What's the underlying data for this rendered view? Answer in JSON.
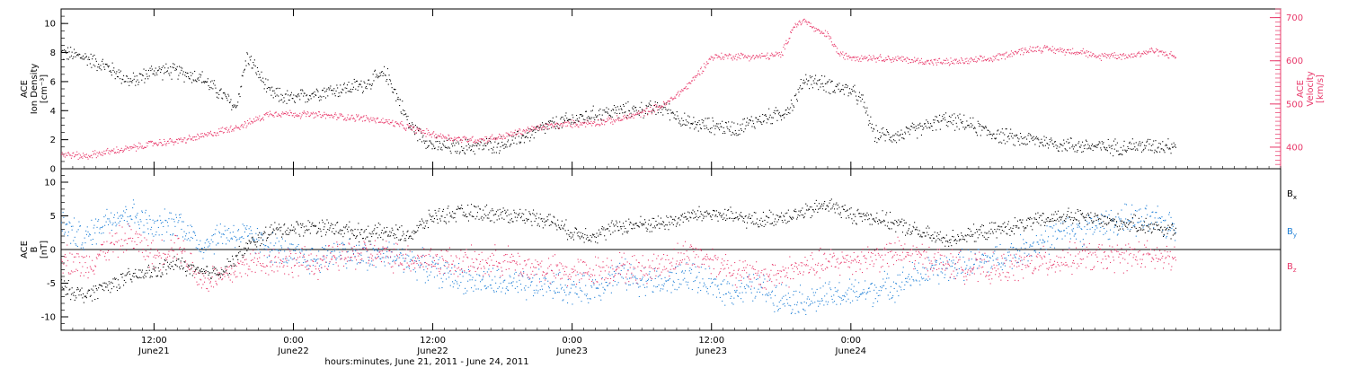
{
  "chart_data": [
    {
      "type": "scatter",
      "panel": "top",
      "left_axis": {
        "label_lines": [
          "ACE",
          "Ion Density",
          "[cm⁻³]"
        ],
        "ylim": [
          0,
          11
        ],
        "ticks": [
          0,
          2,
          4,
          6,
          8,
          10
        ],
        "color": "#000000"
      },
      "right_axis": {
        "label_lines": [
          "ACE",
          "Velocity",
          "[km/s]"
        ],
        "ylim": [
          350,
          720
        ],
        "ticks": [
          400,
          500,
          600,
          700
        ],
        "color": "#e8386a"
      },
      "series": [
        {
          "axis": "left",
          "color": "#000000",
          "points": [
            [
              0,
              8.0
            ],
            [
              2,
              7.7
            ],
            [
              4,
              7.0
            ],
            [
              6,
              6.0
            ],
            [
              8,
              6.8
            ],
            [
              10,
              6.7
            ],
            [
              12,
              6.3
            ],
            [
              14,
              5.0
            ],
            [
              15,
              4.2
            ],
            [
              16,
              7.8
            ],
            [
              17,
              6.5
            ],
            [
              18,
              5.2
            ],
            [
              20,
              4.8
            ],
            [
              22,
              5.3
            ],
            [
              24,
              5.5
            ],
            [
              26,
              5.8
            ],
            [
              28,
              6.6
            ],
            [
              30,
              3.0
            ],
            [
              32,
              1.6
            ],
            [
              34,
              1.5
            ],
            [
              36,
              1.6
            ],
            [
              38,
              1.7
            ],
            [
              40,
              2.3
            ],
            [
              42,
              3.0
            ],
            [
              44,
              3.4
            ],
            [
              46,
              3.8
            ],
            [
              48,
              4.0
            ],
            [
              50,
              4.1
            ],
            [
              52,
              4.2
            ],
            [
              54,
              3.1
            ],
            [
              56,
              3.0
            ],
            [
              58,
              2.8
            ],
            [
              60,
              3.4
            ],
            [
              62,
              3.8
            ],
            [
              63,
              4.5
            ],
            [
              64,
              6.2
            ],
            [
              66,
              5.8
            ],
            [
              68,
              5.4
            ],
            [
              69,
              4.6
            ],
            [
              70,
              2.4
            ],
            [
              72,
              2.3
            ],
            [
              74,
              2.8
            ],
            [
              76,
              3.4
            ],
            [
              78,
              3.1
            ],
            [
              80,
              2.5
            ],
            [
              82,
              2.1
            ],
            [
              84,
              2.0
            ],
            [
              86,
              1.7
            ],
            [
              88,
              1.6
            ],
            [
              90,
              1.5
            ],
            [
              92,
              1.6
            ],
            [
              94,
              1.6
            ],
            [
              96,
              1.7
            ]
          ]
        },
        {
          "axis": "right",
          "color": "#e8386a",
          "points": [
            [
              0,
              385
            ],
            [
              2,
              380
            ],
            [
              4,
              390
            ],
            [
              6,
              398
            ],
            [
              8,
              410
            ],
            [
              10,
              415
            ],
            [
              12,
              425
            ],
            [
              14,
              440
            ],
            [
              16,
              455
            ],
            [
              18,
              480
            ],
            [
              20,
              478
            ],
            [
              22,
              475
            ],
            [
              24,
              472
            ],
            [
              26,
              468
            ],
            [
              28,
              460
            ],
            [
              30,
              445
            ],
            [
              32,
              430
            ],
            [
              34,
              420
            ],
            [
              36,
              418
            ],
            [
              38,
              425
            ],
            [
              40,
              440
            ],
            [
              42,
              450
            ],
            [
              44,
              455
            ],
            [
              46,
              458
            ],
            [
              48,
              465
            ],
            [
              50,
              480
            ],
            [
              52,
              500
            ],
            [
              54,
              545
            ],
            [
              56,
              610
            ],
            [
              58,
              612
            ],
            [
              60,
              610
            ],
            [
              62,
              615
            ],
            [
              63,
              680
            ],
            [
              64,
              695
            ],
            [
              65,
              670
            ],
            [
              66,
              660
            ],
            [
              67,
              615
            ],
            [
              68,
              610
            ],
            [
              70,
              608
            ],
            [
              72,
              605
            ],
            [
              74,
              600
            ],
            [
              76,
              598
            ],
            [
              78,
              600
            ],
            [
              80,
              605
            ],
            [
              82,
              620
            ],
            [
              84,
              630
            ],
            [
              86,
              625
            ],
            [
              88,
              622
            ],
            [
              89,
              608
            ],
            [
              90,
              615
            ],
            [
              92,
              612
            ],
            [
              94,
              625
            ],
            [
              96,
              610
            ]
          ]
        }
      ]
    },
    {
      "type": "scatter",
      "panel": "bottom",
      "left_axis": {
        "label_lines": [
          "ACE",
          "B",
          "[nT]"
        ],
        "ylim": [
          -12,
          12
        ],
        "ticks": [
          -10,
          -5,
          0,
          5,
          10
        ],
        "color": "#000000"
      },
      "legend": [
        {
          "text": "B",
          "sub": "x",
          "color": "#000000"
        },
        {
          "text": "B",
          "sub": "y",
          "color": "#1e7fd6"
        },
        {
          "text": "B",
          "sub": "z",
          "color": "#e8386a"
        }
      ],
      "series": [
        {
          "name_sub": "x",
          "color": "#000000",
          "points": [
            [
              0,
              -5.5
            ],
            [
              2,
              -6.8
            ],
            [
              4,
              -5.2
            ],
            [
              6,
              -4.0
            ],
            [
              8,
              -3.2
            ],
            [
              10,
              -2.0
            ],
            [
              12,
              -3.5
            ],
            [
              14,
              -3.0
            ],
            [
              16,
              0.5
            ],
            [
              18,
              2.8
            ],
            [
              20,
              3.2
            ],
            [
              22,
              3.5
            ],
            [
              24,
              3.1
            ],
            [
              26,
              2.5
            ],
            [
              28,
              2.6
            ],
            [
              30,
              2.2
            ],
            [
              32,
              5.0
            ],
            [
              34,
              5.4
            ],
            [
              36,
              5.6
            ],
            [
              38,
              5.2
            ],
            [
              40,
              5.0
            ],
            [
              42,
              4.5
            ],
            [
              44,
              2.5
            ],
            [
              46,
              2.2
            ],
            [
              48,
              3.5
            ],
            [
              50,
              3.8
            ],
            [
              52,
              4.0
            ],
            [
              54,
              5.0
            ],
            [
              56,
              5.4
            ],
            [
              58,
              4.8
            ],
            [
              60,
              4.3
            ],
            [
              62,
              5.0
            ],
            [
              64,
              5.5
            ],
            [
              66,
              6.8
            ],
            [
              68,
              5.2
            ],
            [
              70,
              4.8
            ],
            [
              72,
              3.8
            ],
            [
              74,
              2.5
            ],
            [
              76,
              1.5
            ],
            [
              78,
              2.2
            ],
            [
              80,
              2.8
            ],
            [
              82,
              3.5
            ],
            [
              84,
              4.2
            ],
            [
              86,
              5.0
            ],
            [
              88,
              4.8
            ],
            [
              90,
              4.3
            ],
            [
              92,
              3.9
            ],
            [
              94,
              3.5
            ],
            [
              96,
              2.5
            ]
          ]
        },
        {
          "name_sub": "y",
          "color": "#1e7fd6",
          "points": [
            [
              0,
              3.8
            ],
            [
              2,
              1.5
            ],
            [
              4,
              4.8
            ],
            [
              6,
              5.5
            ],
            [
              8,
              3.0
            ],
            [
              10,
              4.5
            ],
            [
              12,
              0.5
            ],
            [
              14,
              2.5
            ],
            [
              16,
              2.0
            ],
            [
              18,
              0.5
            ],
            [
              20,
              -1.0
            ],
            [
              22,
              -1.5
            ],
            [
              24,
              0.0
            ],
            [
              26,
              -1.0
            ],
            [
              28,
              -0.8
            ],
            [
              30,
              -1.5
            ],
            [
              32,
              -3.0
            ],
            [
              34,
              -4.0
            ],
            [
              36,
              -4.5
            ],
            [
              38,
              -5.0
            ],
            [
              40,
              -5.5
            ],
            [
              42,
              -5.0
            ],
            [
              44,
              -6.0
            ],
            [
              46,
              -5.5
            ],
            [
              48,
              -3.5
            ],
            [
              50,
              -4.5
            ],
            [
              52,
              -5.0
            ],
            [
              54,
              -3.5
            ],
            [
              56,
              -5.5
            ],
            [
              58,
              -6.0
            ],
            [
              60,
              -5.5
            ],
            [
              62,
              -7.0
            ],
            [
              64,
              -7.5
            ],
            [
              66,
              -7.0
            ],
            [
              68,
              -6.5
            ],
            [
              70,
              -6.0
            ],
            [
              72,
              -5.0
            ],
            [
              74,
              -3.5
            ],
            [
              76,
              -2.8
            ],
            [
              78,
              -2.0
            ],
            [
              80,
              -1.5
            ],
            [
              82,
              -0.5
            ],
            [
              84,
              1.0
            ],
            [
              86,
              2.5
            ],
            [
              88,
              3.0
            ],
            [
              90,
              4.0
            ],
            [
              92,
              4.5
            ],
            [
              94,
              4.2
            ],
            [
              96,
              3.5
            ]
          ]
        },
        {
          "name_sub": "z",
          "color": "#e8386a",
          "points": [
            [
              0,
              -1.0
            ],
            [
              2,
              -2.5
            ],
            [
              4,
              0.5
            ],
            [
              6,
              2.0
            ],
            [
              8,
              -1.0
            ],
            [
              10,
              1.0
            ],
            [
              12,
              -4.5
            ],
            [
              14,
              -4.0
            ],
            [
              16,
              -2.0
            ],
            [
              18,
              -1.5
            ],
            [
              20,
              -1.8
            ],
            [
              22,
              -2.0
            ],
            [
              24,
              -1.0
            ],
            [
              26,
              -0.5
            ],
            [
              28,
              -0.8
            ],
            [
              30,
              -1.2
            ],
            [
              32,
              -1.5
            ],
            [
              34,
              -1.8
            ],
            [
              36,
              -2.0
            ],
            [
              38,
              -1.5
            ],
            [
              40,
              -2.5
            ],
            [
              42,
              -3.0
            ],
            [
              44,
              -3.5
            ],
            [
              46,
              -3.0
            ],
            [
              48,
              -2.5
            ],
            [
              50,
              -3.0
            ],
            [
              52,
              -2.0
            ],
            [
              54,
              -0.5
            ],
            [
              56,
              -1.5
            ],
            [
              58,
              -3.0
            ],
            [
              60,
              -4.0
            ],
            [
              62,
              -3.5
            ],
            [
              64,
              -2.5
            ],
            [
              66,
              -2.0
            ],
            [
              68,
              -1.5
            ],
            [
              70,
              -1.0
            ],
            [
              72,
              -0.5
            ],
            [
              74,
              -1.0
            ],
            [
              76,
              -2.0
            ],
            [
              78,
              -2.5
            ],
            [
              80,
              -3.0
            ],
            [
              82,
              -2.5
            ],
            [
              84,
              -2.0
            ],
            [
              86,
              -1.5
            ],
            [
              88,
              -1.0
            ],
            [
              90,
              -1.2
            ],
            [
              92,
              -0.8
            ],
            [
              94,
              -1.0
            ],
            [
              96,
              -1.5
            ]
          ]
        }
      ]
    }
  ],
  "x_axis": {
    "range_hours": [
      0,
      105
    ],
    "major_ticks": [
      {
        "h": 8,
        "time": "12:00",
        "day": "June21"
      },
      {
        "h": 20,
        "time": "0:00",
        "day": "June22"
      },
      {
        "h": 32,
        "time": "12:00",
        "day": "June22"
      },
      {
        "h": 44,
        "time": "0:00",
        "day": "June23"
      },
      {
        "h": 56,
        "time": "12:00",
        "day": "June23"
      },
      {
        "h": 68,
        "time": "0:00",
        "day": "June24"
      }
    ],
    "label": "hours:minutes, June 21, 2011 - June 24, 2011"
  }
}
